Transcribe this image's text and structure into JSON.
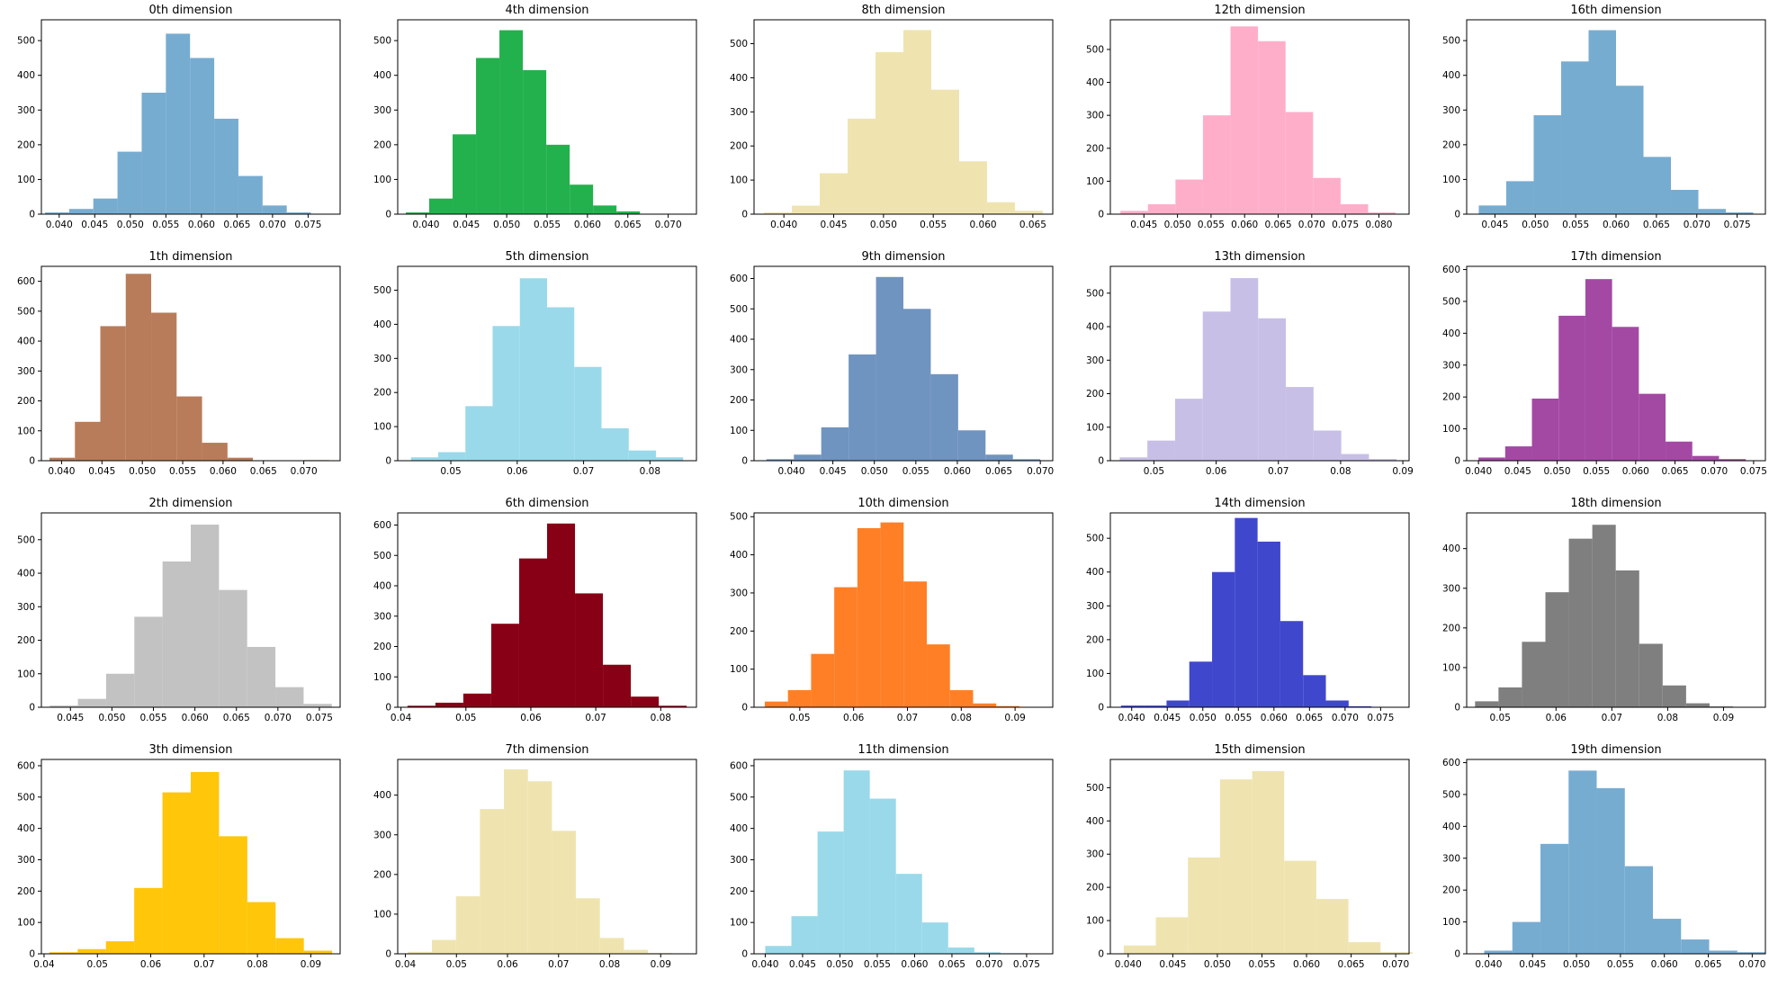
{
  "chart_data": [
    {
      "type": "bar",
      "title": "0th dimension",
      "color": "#77acd1",
      "edges": [
        0.038,
        0.0414,
        0.0448,
        0.0482,
        0.0516,
        0.055,
        0.0584,
        0.0618,
        0.0652,
        0.0686,
        0.072,
        0.0754,
        0.0788
      ],
      "values": [
        5,
        15,
        45,
        180,
        350,
        520,
        450,
        275,
        110,
        25,
        5,
        0
      ],
      "xticks": [
        0.04,
        0.045,
        0.05,
        0.055,
        0.06,
        0.065,
        0.07,
        0.075
      ],
      "xtick_labels": [
        "0.040",
        "0.045",
        "0.050",
        "0.055",
        "0.060",
        "0.065",
        "0.070",
        "0.075"
      ],
      "yticks": [
        0,
        100,
        200,
        300,
        400,
        500
      ],
      "xlim": [
        0.0375,
        0.0795
      ],
      "ylim": [
        0,
        560
      ]
    },
    {
      "type": "bar",
      "title": "1th dimension",
      "color": "#b87c5a",
      "edges": [
        0.0385,
        0.04165,
        0.0448,
        0.04795,
        0.0511,
        0.05425,
        0.0574,
        0.06055,
        0.0637,
        0.06685,
        0.07,
        0.07315
      ],
      "values": [
        10,
        130,
        450,
        625,
        495,
        215,
        60,
        10,
        0,
        0,
        2
      ],
      "xticks": [
        0.04,
        0.045,
        0.05,
        0.055,
        0.06,
        0.065,
        0.07
      ],
      "xtick_labels": [
        "0.040",
        "0.045",
        "0.050",
        "0.055",
        "0.060",
        "0.065",
        "0.070"
      ],
      "yticks": [
        0,
        100,
        200,
        300,
        400,
        500,
        600
      ],
      "xlim": [
        0.0375,
        0.0745
      ],
      "ylim": [
        0,
        650
      ]
    },
    {
      "type": "bar",
      "title": "2th dimension",
      "color": "#c2c2c2",
      "edges": [
        0.0425,
        0.0459,
        0.0493,
        0.0527,
        0.0561,
        0.0595,
        0.0629,
        0.0663,
        0.0697,
        0.0731,
        0.0765
      ],
      "values": [
        5,
        25,
        100,
        270,
        435,
        545,
        350,
        180,
        60,
        10
      ],
      "xticks": [
        0.045,
        0.05,
        0.055,
        0.06,
        0.065,
        0.07,
        0.075
      ],
      "xtick_labels": [
        "0.045",
        "0.050",
        "0.055",
        "0.060",
        "0.065",
        "0.070",
        "0.075"
      ],
      "yticks": [
        0,
        100,
        200,
        300,
        400,
        500
      ],
      "xlim": [
        0.0415,
        0.0775
      ],
      "ylim": [
        0,
        580
      ]
    },
    {
      "type": "bar",
      "title": "3th dimension",
      "color": "#ffc60a",
      "edges": [
        0.041,
        0.0463,
        0.0516,
        0.0569,
        0.0622,
        0.0675,
        0.0728,
        0.0781,
        0.0834,
        0.0887,
        0.094
      ],
      "values": [
        5,
        15,
        40,
        210,
        515,
        580,
        375,
        165,
        50,
        10
      ],
      "xticks": [
        0.04,
        0.05,
        0.06,
        0.07,
        0.08,
        0.09
      ],
      "xtick_labels": [
        "0.04",
        "0.05",
        "0.06",
        "0.07",
        "0.08",
        "0.09"
      ],
      "yticks": [
        0,
        100,
        200,
        300,
        400,
        500,
        600
      ],
      "xlim": [
        0.0395,
        0.0955
      ],
      "ylim": [
        0,
        620
      ]
    },
    {
      "type": "bar",
      "title": "4th dimension",
      "color": "#23b14d",
      "edges": [
        0.0375,
        0.0404,
        0.0433,
        0.0462,
        0.0491,
        0.052,
        0.0549,
        0.0578,
        0.0607,
        0.0636,
        0.0665,
        0.0694,
        0.0723
      ],
      "values": [
        5,
        45,
        230,
        450,
        530,
        415,
        200,
        85,
        25,
        8,
        0,
        0
      ],
      "xticks": [
        0.04,
        0.045,
        0.05,
        0.055,
        0.06,
        0.065,
        0.07
      ],
      "xtick_labels": [
        "0.040",
        "0.045",
        "0.050",
        "0.055",
        "0.060",
        "0.065",
        "0.070"
      ],
      "yticks": [
        0,
        100,
        200,
        300,
        400,
        500
      ],
      "xlim": [
        0.0365,
        0.0735
      ],
      "ylim": [
        0,
        560
      ]
    },
    {
      "type": "bar",
      "title": "5th dimension",
      "color": "#99d9ea",
      "edges": [
        0.044,
        0.0481,
        0.0522,
        0.0563,
        0.0604,
        0.0645,
        0.0686,
        0.0727,
        0.0768,
        0.0809,
        0.085
      ],
      "values": [
        10,
        25,
        160,
        395,
        535,
        450,
        275,
        95,
        30,
        10
      ],
      "xticks": [
        0.05,
        0.06,
        0.07,
        0.08
      ],
      "xtick_labels": [
        "0.05",
        "0.06",
        "0.07",
        "0.08"
      ],
      "yticks": [
        0,
        100,
        200,
        300,
        400,
        500
      ],
      "xlim": [
        0.042,
        0.087
      ],
      "ylim": [
        0,
        570
      ]
    },
    {
      "type": "bar",
      "title": "6th dimension",
      "color": "#880015",
      "edges": [
        0.041,
        0.0453,
        0.0496,
        0.0539,
        0.0582,
        0.0625,
        0.0668,
        0.0711,
        0.0754,
        0.0797,
        0.084
      ],
      "values": [
        5,
        15,
        45,
        275,
        490,
        605,
        375,
        140,
        35,
        5
      ],
      "xticks": [
        0.04,
        0.05,
        0.06,
        0.07,
        0.08
      ],
      "xtick_labels": [
        "0.04",
        "0.05",
        "0.06",
        "0.07",
        "0.08"
      ],
      "yticks": [
        0,
        100,
        200,
        300,
        400,
        500,
        600
      ],
      "xlim": [
        0.0395,
        0.0855
      ],
      "ylim": [
        0,
        640
      ]
    },
    {
      "type": "bar",
      "title": "7th dimension",
      "color": "#efe4b0",
      "edges": [
        0.0405,
        0.0452,
        0.0499,
        0.0546,
        0.0593,
        0.064,
        0.0687,
        0.0734,
        0.0781,
        0.0828,
        0.0875,
        0.0922
      ],
      "values": [
        5,
        35,
        145,
        365,
        465,
        435,
        310,
        140,
        40,
        10,
        2
      ],
      "xticks": [
        0.04,
        0.05,
        0.06,
        0.07,
        0.08,
        0.09
      ],
      "xtick_labels": [
        "0.04",
        "0.05",
        "0.06",
        "0.07",
        "0.08",
        "0.09"
      ],
      "yticks": [
        0,
        100,
        200,
        300,
        400
      ],
      "xlim": [
        0.0385,
        0.097
      ],
      "ylim": [
        0,
        490
      ]
    },
    {
      "type": "bar",
      "title": "8th dimension",
      "color": "#efe4b0",
      "edges": [
        0.038,
        0.0408,
        0.0436,
        0.0464,
        0.0492,
        0.052,
        0.0548,
        0.0576,
        0.0604,
        0.0632,
        0.066
      ],
      "values": [
        5,
        25,
        120,
        280,
        475,
        540,
        365,
        155,
        35,
        10
      ],
      "xticks": [
        0.04,
        0.045,
        0.05,
        0.055,
        0.06,
        0.065
      ],
      "xtick_labels": [
        "0.040",
        "0.045",
        "0.050",
        "0.055",
        "0.060",
        "0.065"
      ],
      "yticks": [
        0,
        100,
        200,
        300,
        400,
        500
      ],
      "xlim": [
        0.037,
        0.067
      ],
      "ylim": [
        0,
        570
      ]
    },
    {
      "type": "bar",
      "title": "9th dimension",
      "color": "#7094c0",
      "edges": [
        0.037,
        0.0403,
        0.0436,
        0.0469,
        0.0502,
        0.0535,
        0.0568,
        0.0601,
        0.0634,
        0.0667,
        0.07
      ],
      "values": [
        5,
        20,
        110,
        350,
        605,
        500,
        285,
        100,
        20,
        5
      ],
      "xticks": [
        0.04,
        0.045,
        0.05,
        0.055,
        0.06,
        0.065,
        0.07
      ],
      "xtick_labels": [
        "0.040",
        "0.045",
        "0.050",
        "0.055",
        "0.060",
        "0.065",
        "0.070"
      ],
      "yticks": [
        0,
        100,
        200,
        300,
        400,
        500,
        600
      ],
      "xlim": [
        0.0355,
        0.0715
      ],
      "ylim": [
        0,
        640
      ]
    },
    {
      "type": "bar",
      "title": "10th dimension",
      "color": "#ff7f27",
      "edges": [
        0.0435,
        0.0478,
        0.0521,
        0.0564,
        0.0607,
        0.065,
        0.0693,
        0.0736,
        0.0779,
        0.0822,
        0.0865,
        0.0908,
        0.0951
      ],
      "values": [
        15,
        45,
        140,
        315,
        470,
        485,
        330,
        165,
        45,
        10,
        3,
        0
      ],
      "xticks": [
        0.05,
        0.06,
        0.07,
        0.08,
        0.09
      ],
      "xtick_labels": [
        "0.05",
        "0.06",
        "0.07",
        "0.08",
        "0.09"
      ],
      "yticks": [
        0,
        100,
        200,
        300,
        400,
        500
      ],
      "xlim": [
        0.0415,
        0.097
      ],
      "ylim": [
        0,
        510
      ]
    },
    {
      "type": "bar",
      "title": "11th dimension",
      "color": "#99d9ea",
      "edges": [
        0.04,
        0.0435,
        0.047,
        0.0505,
        0.054,
        0.0575,
        0.061,
        0.0645,
        0.068,
        0.0715,
        0.075
      ],
      "values": [
        25,
        120,
        390,
        585,
        495,
        255,
        100,
        20,
        5,
        2
      ],
      "xticks": [
        0.04,
        0.045,
        0.05,
        0.055,
        0.06,
        0.065,
        0.07,
        0.075
      ],
      "xtick_labels": [
        "0.040",
        "0.045",
        "0.050",
        "0.055",
        "0.060",
        "0.065",
        "0.070",
        "0.075"
      ],
      "yticks": [
        0,
        100,
        200,
        300,
        400,
        500,
        600
      ],
      "xlim": [
        0.0385,
        0.0785
      ],
      "ylim": [
        0,
        620
      ]
    },
    {
      "type": "bar",
      "title": "12th dimension",
      "color": "#ffaec9",
      "edges": [
        0.0415,
        0.0456,
        0.0497,
        0.0538,
        0.0579,
        0.062,
        0.0661,
        0.0702,
        0.0743,
        0.0784,
        0.0825
      ],
      "values": [
        10,
        30,
        105,
        300,
        570,
        525,
        310,
        110,
        30,
        5
      ],
      "xticks": [
        0.045,
        0.05,
        0.055,
        0.06,
        0.065,
        0.07,
        0.075,
        0.08
      ],
      "xtick_labels": [
        "0.045",
        "0.050",
        "0.055",
        "0.060",
        "0.065",
        "0.070",
        "0.075",
        "0.080"
      ],
      "yticks": [
        0,
        100,
        200,
        300,
        400,
        500
      ],
      "xlim": [
        0.04,
        0.0845
      ],
      "ylim": [
        0,
        590
      ]
    },
    {
      "type": "bar",
      "title": "13th dimension",
      "color": "#c8bfe7",
      "edges": [
        0.0445,
        0.04895,
        0.0534,
        0.05785,
        0.0623,
        0.06675,
        0.0712,
        0.07565,
        0.0801,
        0.08455,
        0.089
      ],
      "values": [
        10,
        60,
        185,
        445,
        545,
        425,
        220,
        90,
        20,
        5
      ],
      "xticks": [
        0.05,
        0.06,
        0.07,
        0.08,
        0.09
      ],
      "xtick_labels": [
        "0.05",
        "0.06",
        "0.07",
        "0.08",
        "0.09"
      ],
      "yticks": [
        0,
        100,
        200,
        300,
        400,
        500
      ],
      "xlim": [
        0.043,
        0.091
      ],
      "ylim": [
        0,
        580
      ]
    },
    {
      "type": "bar",
      "title": "14th dimension",
      "color": "#3f48cc",
      "edges": [
        0.0385,
        0.0417,
        0.0449,
        0.0481,
        0.0513,
        0.0545,
        0.0577,
        0.0609,
        0.0641,
        0.0673,
        0.0705,
        0.0737,
        0.0769
      ],
      "values": [
        5,
        5,
        20,
        135,
        400,
        560,
        490,
        255,
        95,
        20,
        3,
        0
      ],
      "xticks": [
        0.04,
        0.045,
        0.05,
        0.055,
        0.06,
        0.065,
        0.07,
        0.075
      ],
      "xtick_labels": [
        "0.040",
        "0.045",
        "0.050",
        "0.055",
        "0.060",
        "0.065",
        "0.070",
        "0.075"
      ],
      "yticks": [
        0,
        100,
        200,
        300,
        400,
        500
      ],
      "xlim": [
        0.037,
        0.079
      ],
      "ylim": [
        0,
        575
      ]
    },
    {
      "type": "bar",
      "title": "15th dimension",
      "color": "#efe4b0",
      "edges": [
        0.0395,
        0.0431,
        0.0467,
        0.0503,
        0.0539,
        0.0575,
        0.0611,
        0.0647,
        0.0683,
        0.0719
      ],
      "values": [
        25,
        110,
        290,
        525,
        550,
        280,
        165,
        35,
        5
      ],
      "xticks": [
        0.04,
        0.045,
        0.05,
        0.055,
        0.06,
        0.065,
        0.07
      ],
      "xtick_labels": [
        "0.040",
        "0.045",
        "0.050",
        "0.055",
        "0.060",
        "0.065",
        "0.070"
      ],
      "yticks": [
        0,
        100,
        200,
        300,
        400,
        500
      ],
      "xlim": [
        0.038,
        0.0715
      ],
      "ylim": [
        0,
        585
      ]
    },
    {
      "type": "bar",
      "title": "16th dimension",
      "color": "#77acd1",
      "edges": [
        0.043,
        0.0464,
        0.0498,
        0.0532,
        0.0566,
        0.06,
        0.0634,
        0.0668,
        0.0702,
        0.0736,
        0.077
      ],
      "values": [
        25,
        95,
        285,
        440,
        530,
        370,
        165,
        70,
        15,
        5
      ],
      "xticks": [
        0.045,
        0.05,
        0.055,
        0.06,
        0.065,
        0.07,
        0.075
      ],
      "xtick_labels": [
        "0.045",
        "0.050",
        "0.055",
        "0.060",
        "0.065",
        "0.070",
        "0.075"
      ],
      "yticks": [
        0,
        100,
        200,
        300,
        400,
        500
      ],
      "xlim": [
        0.0415,
        0.0785
      ],
      "ylim": [
        0,
        560
      ]
    },
    {
      "type": "bar",
      "title": "17th dimension",
      "color": "#a349a4",
      "edges": [
        0.04,
        0.0434,
        0.0468,
        0.0502,
        0.0536,
        0.057,
        0.0604,
        0.0638,
        0.0672,
        0.0706,
        0.074
      ],
      "values": [
        10,
        45,
        195,
        455,
        570,
        420,
        210,
        60,
        15,
        5
      ],
      "xticks": [
        0.04,
        0.045,
        0.05,
        0.055,
        0.06,
        0.065,
        0.07,
        0.075
      ],
      "xtick_labels": [
        "0.040",
        "0.045",
        "0.050",
        "0.055",
        "0.060",
        "0.065",
        "0.070",
        "0.075"
      ],
      "yticks": [
        0,
        100,
        200,
        300,
        400,
        500,
        600
      ],
      "xlim": [
        0.0385,
        0.0765
      ],
      "ylim": [
        0,
        610
      ]
    },
    {
      "type": "bar",
      "title": "18th dimension",
      "color": "#7f7f7f",
      "edges": [
        0.0455,
        0.0497,
        0.0539,
        0.0581,
        0.0623,
        0.0665,
        0.0707,
        0.0749,
        0.0791,
        0.0833,
        0.0875,
        0.0917,
        0.0959
      ],
      "values": [
        15,
        50,
        165,
        290,
        425,
        460,
        345,
        160,
        55,
        10,
        2,
        0
      ],
      "xticks": [
        0.05,
        0.06,
        0.07,
        0.08,
        0.09
      ],
      "xtick_labels": [
        "0.05",
        "0.06",
        "0.07",
        "0.08",
        "0.09"
      ],
      "yticks": [
        0,
        100,
        200,
        300,
        400
      ],
      "xlim": [
        0.044,
        0.0975
      ],
      "ylim": [
        0,
        490
      ]
    },
    {
      "type": "bar",
      "title": "19th dimension",
      "color": "#77acd1",
      "edges": [
        0.0395,
        0.0427,
        0.0459,
        0.0491,
        0.0523,
        0.0555,
        0.0587,
        0.0619,
        0.0651,
        0.0683,
        0.0715
      ],
      "values": [
        10,
        100,
        345,
        575,
        520,
        275,
        110,
        45,
        10,
        5
      ],
      "xticks": [
        0.04,
        0.045,
        0.05,
        0.055,
        0.06,
        0.065,
        0.07
      ],
      "xtick_labels": [
        "0.040",
        "0.045",
        "0.050",
        "0.055",
        "0.060",
        "0.065",
        "0.070"
      ],
      "yticks": [
        0,
        100,
        200,
        300,
        400,
        500,
        600
      ],
      "xlim": [
        0.0375,
        0.0715
      ],
      "ylim": [
        0,
        610
      ]
    }
  ]
}
